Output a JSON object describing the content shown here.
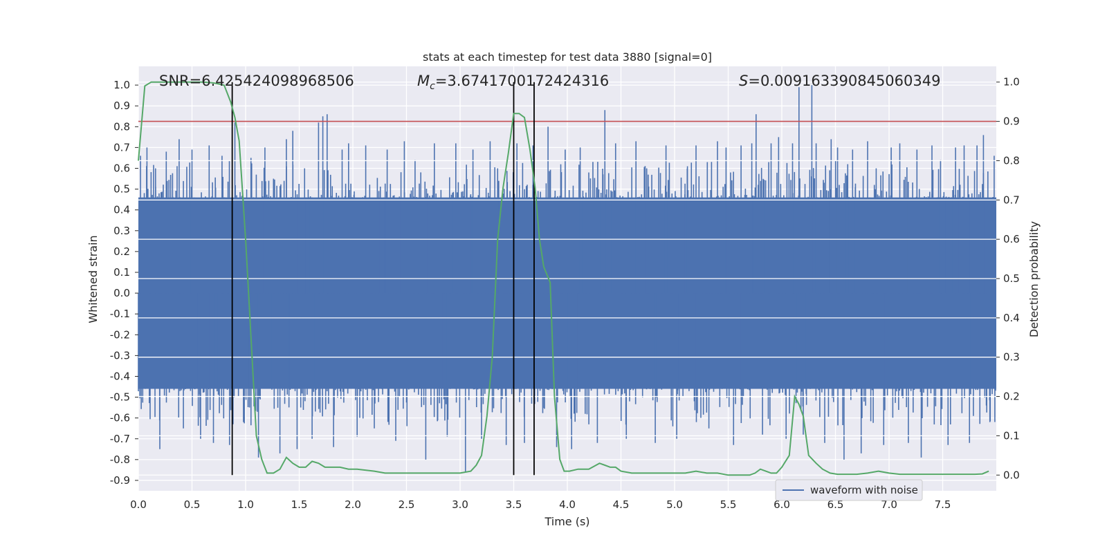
{
  "chart_data": {
    "type": "line",
    "title": "stats at each timestep for test data 3880 [signal=0]",
    "xlabel": "Time (s)",
    "ylabel": "Whitened strain",
    "y2label": "Detection probability",
    "xlim": [
      0.0,
      8.0
    ],
    "ylim": [
      -0.95,
      1.09
    ],
    "y2lim": [
      -0.04,
      1.04
    ],
    "xticks": [
      "0.0",
      "0.5",
      "1.0",
      "1.5",
      "2.0",
      "2.5",
      "3.0",
      "3.5",
      "4.0",
      "4.5",
      "5.0",
      "5.5",
      "6.0",
      "6.5",
      "7.0",
      "7.5"
    ],
    "yticks": [
      "1.0",
      "0.9",
      "0.8",
      "0.7",
      "0.6",
      "0.5",
      "0.4",
      "0.3",
      "0.2",
      "0.1",
      "0.0",
      "-0.1",
      "-0.2",
      "-0.3",
      "-0.4",
      "-0.5",
      "-0.6",
      "-0.7",
      "-0.8",
      "-0.9"
    ],
    "y2ticks": [
      "1.0",
      "0.9",
      "0.8",
      "0.7",
      "0.6",
      "0.5",
      "0.4",
      "0.3",
      "0.2",
      "0.1",
      "0.0"
    ],
    "grid": true,
    "legend_position": "lower-right",
    "annotations": {
      "snr": "SNR=6.425424098968506",
      "mc_prefix": "M",
      "mc_sub": "c",
      "mc_value": "=3.6741700172424316",
      "s_prefix": "S",
      "s_value": "=0.009163390845060349"
    },
    "threshold": 0.9,
    "vertical_lines": [
      0.875,
      3.5,
      3.69
    ],
    "series": [
      {
        "name": "waveform with noise",
        "axis": "left",
        "color": "#4c72b0",
        "style": "noise",
        "core_band": [
          -0.46,
          0.46
        ],
        "peaks": [
          [
            0.02,
            0.66
          ],
          [
            0.08,
            0.7
          ],
          [
            0.16,
            0.6
          ],
          [
            0.2,
            -0.75
          ],
          [
            0.26,
            0.68
          ],
          [
            0.38,
            0.74
          ],
          [
            0.42,
            -0.65
          ],
          [
            0.5,
            0.69
          ],
          [
            0.58,
            -0.7
          ],
          [
            0.66,
            0.71
          ],
          [
            0.7,
            -0.72
          ],
          [
            0.78,
            0.66
          ],
          [
            0.85,
            -0.73
          ],
          [
            0.9,
            0.82
          ],
          [
            0.98,
            -0.62
          ],
          [
            1.05,
            0.65
          ],
          [
            1.12,
            -0.79
          ],
          [
            1.18,
            0.7
          ],
          [
            1.26,
            0.55
          ],
          [
            1.32,
            -0.77
          ],
          [
            1.38,
            0.74
          ],
          [
            1.44,
            0.78
          ],
          [
            1.48,
            -0.75
          ],
          [
            1.55,
            0.6
          ],
          [
            1.62,
            -0.7
          ],
          [
            1.68,
            0.82
          ],
          [
            1.72,
            0.85
          ],
          [
            1.76,
            0.86
          ],
          [
            1.82,
            -0.74
          ],
          [
            1.9,
            0.69
          ],
          [
            1.96,
            0.72
          ],
          [
            2.04,
            -0.69
          ],
          [
            2.12,
            0.71
          ],
          [
            2.2,
            -0.65
          ],
          [
            2.32,
            0.69
          ],
          [
            2.4,
            -0.71
          ],
          [
            2.48,
            0.73
          ],
          [
            2.58,
            0.64
          ],
          [
            2.68,
            -0.8
          ],
          [
            2.76,
            0.72
          ],
          [
            2.88,
            -0.69
          ],
          [
            2.96,
            0.72
          ],
          [
            3.05,
            -0.86
          ],
          [
            3.12,
            0.69
          ],
          [
            3.2,
            -0.7
          ],
          [
            3.28,
            0.73
          ],
          [
            3.35,
            0.6
          ],
          [
            3.43,
            -0.73
          ],
          [
            3.53,
            0.72
          ],
          [
            3.6,
            -0.72
          ],
          [
            3.68,
            0.71
          ],
          [
            3.82,
            0.8
          ],
          [
            3.9,
            -0.74
          ],
          [
            3.98,
            0.69
          ],
          [
            4.04,
            -0.75
          ],
          [
            4.12,
            0.7
          ],
          [
            4.2,
            0.58
          ],
          [
            4.28,
            -0.72
          ],
          [
            4.35,
            0.88
          ],
          [
            4.45,
            0.72
          ],
          [
            4.55,
            -0.7
          ],
          [
            4.64,
            0.73
          ],
          [
            4.74,
            0.6
          ],
          [
            4.82,
            -0.72
          ],
          [
            4.92,
            0.71
          ],
          [
            5.02,
            -0.7
          ],
          [
            5.12,
            0.61
          ],
          [
            5.2,
            0.71
          ],
          [
            5.32,
            -0.65
          ],
          [
            5.4,
            0.73
          ],
          [
            5.48,
            0.7
          ],
          [
            5.55,
            -0.73
          ],
          [
            5.62,
            0.71
          ],
          [
            5.72,
            0.72
          ],
          [
            5.76,
            0.86
          ],
          [
            5.82,
            -0.68
          ],
          [
            5.9,
            0.72
          ],
          [
            5.97,
            0.75
          ],
          [
            6.04,
            -0.7
          ],
          [
            6.1,
            0.72
          ],
          [
            6.16,
            0.99
          ],
          [
            6.2,
            -0.68
          ],
          [
            6.28,
            1.0
          ],
          [
            6.32,
            0.72
          ],
          [
            6.4,
            -0.72
          ],
          [
            6.46,
            0.74
          ],
          [
            6.52,
            0.7
          ],
          [
            6.58,
            -0.8
          ],
          [
            6.66,
            0.69
          ],
          [
            6.74,
            -0.77
          ],
          [
            6.8,
            0.73
          ],
          [
            6.88,
            0.6
          ],
          [
            6.95,
            -0.73
          ],
          [
            7.02,
            0.7
          ],
          [
            7.1,
            0.72
          ],
          [
            7.18,
            -0.72
          ],
          [
            7.26,
            0.69
          ],
          [
            7.3,
            -0.79
          ],
          [
            7.4,
            0.71
          ],
          [
            7.48,
            0.64
          ],
          [
            7.55,
            -0.73
          ],
          [
            7.62,
            0.7
          ],
          [
            7.7,
            0.71
          ],
          [
            7.75,
            -0.72
          ],
          [
            7.82,
            0.71
          ],
          [
            7.88,
            0.76
          ],
          [
            7.94,
            -0.62
          ],
          [
            7.98,
            0.66
          ]
        ]
      },
      {
        "name": "",
        "axis": "right",
        "color": "#55a868",
        "style": "line",
        "x": [
          0.0,
          0.06,
          0.12,
          0.2,
          0.3,
          0.4,
          0.5,
          0.6,
          0.7,
          0.8,
          0.86,
          0.9,
          0.94,
          1.0,
          1.05,
          1.1,
          1.15,
          1.2,
          1.26,
          1.32,
          1.38,
          1.44,
          1.5,
          1.56,
          1.62,
          1.68,
          1.74,
          1.8,
          1.88,
          1.96,
          2.04,
          2.2,
          2.3,
          2.4,
          2.5,
          2.6,
          2.8,
          2.9,
          3.0,
          3.1,
          3.15,
          3.2,
          3.25,
          3.3,
          3.35,
          3.4,
          3.45,
          3.5,
          3.55,
          3.6,
          3.65,
          3.7,
          3.74,
          3.78,
          3.84,
          3.88,
          3.93,
          3.97,
          4.02,
          4.1,
          4.2,
          4.3,
          4.35,
          4.4,
          4.45,
          4.5,
          4.6,
          4.7,
          4.8,
          4.9,
          5.0,
          5.1,
          5.2,
          5.3,
          5.4,
          5.5,
          5.6,
          5.7,
          5.75,
          5.8,
          5.85,
          5.9,
          5.95,
          6.0,
          6.07,
          6.12,
          6.16,
          6.2,
          6.25,
          6.32,
          6.38,
          6.45,
          6.52,
          6.6,
          6.7,
          6.8,
          6.9,
          7.0,
          7.1,
          7.2,
          7.3,
          7.4,
          7.5,
          7.6,
          7.7,
          7.8,
          7.87,
          7.93
        ],
        "values": [
          0.8,
          0.99,
          1.0,
          1.0,
          1.0,
          1.0,
          1.0,
          1.0,
          0.998,
          0.992,
          0.95,
          0.91,
          0.85,
          0.6,
          0.35,
          0.1,
          0.04,
          0.005,
          0.005,
          0.015,
          0.045,
          0.03,
          0.02,
          0.02,
          0.035,
          0.03,
          0.02,
          0.02,
          0.02,
          0.015,
          0.015,
          0.01,
          0.005,
          0.005,
          0.005,
          0.005,
          0.005,
          0.005,
          0.005,
          0.01,
          0.025,
          0.05,
          0.15,
          0.3,
          0.6,
          0.73,
          0.82,
          0.92,
          0.92,
          0.91,
          0.83,
          0.73,
          0.6,
          0.53,
          0.49,
          0.2,
          0.04,
          0.01,
          0.01,
          0.015,
          0.015,
          0.03,
          0.025,
          0.02,
          0.02,
          0.01,
          0.005,
          0.005,
          0.005,
          0.005,
          0.005,
          0.005,
          0.01,
          0.005,
          0.005,
          0.0,
          0.0,
          0.0,
          0.005,
          0.015,
          0.01,
          0.005,
          0.005,
          0.02,
          0.05,
          0.2,
          0.18,
          0.15,
          0.05,
          0.03,
          0.015,
          0.005,
          0.002,
          0.002,
          0.002,
          0.005,
          0.01,
          0.005,
          0.002,
          0.002,
          0.002,
          0.002,
          0.002,
          0.002,
          0.002,
          0.002,
          0.003,
          0.01
        ]
      }
    ]
  }
}
